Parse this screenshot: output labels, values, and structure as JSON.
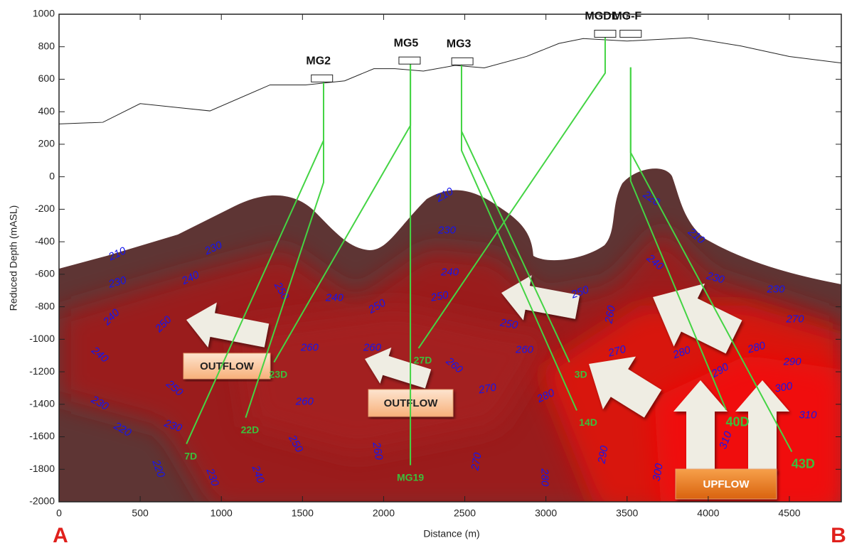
{
  "chart_data": {
    "type": "cross-section",
    "x_label": "Distance (m)",
    "y_label": "Reduced Depth (mASL)",
    "xlim": [
      0,
      4820
    ],
    "ylim": [
      -2000,
      1000
    ],
    "xticks": [
      0,
      500,
      1000,
      1500,
      2000,
      2500,
      3000,
      3500,
      4000,
      4500
    ],
    "yticks": [
      1000,
      800,
      600,
      400,
      200,
      0,
      -200,
      -400,
      -600,
      -800,
      -1000,
      -1200,
      -1400,
      -1600,
      -1800,
      -2000
    ],
    "section_ends": [
      "A",
      "B"
    ],
    "topography": {
      "x": [
        0,
        270,
        500,
        930,
        1300,
        1520,
        1760,
        1940,
        2070,
        2245,
        2440,
        2620,
        2880,
        3080,
        3230,
        3500,
        3890,
        4200,
        4500,
        4820
      ],
      "y": [
        325,
        335,
        450,
        405,
        565,
        565,
        590,
        665,
        665,
        650,
        685,
        670,
        740,
        820,
        850,
        835,
        855,
        805,
        740,
        700
      ]
    },
    "wells": [
      {
        "name": "MG2",
        "collar": [
          1620,
          605
        ],
        "traces": [
          {
            "label": "7D",
            "x": [
              1630,
              1630,
              785
            ],
            "y": [
              595,
              223,
              -1644
            ]
          },
          {
            "label": "22D",
            "x": [
              1630,
              1630,
              1150
            ],
            "y": [
              595,
              -35,
              -1482
            ]
          }
        ]
      },
      {
        "name": "MG5",
        "collar": [
          2160,
          715
        ],
        "traces": [
          {
            "label": "MG19",
            "x": [
              2165,
              2165
            ],
            "y": [
              704,
              -1775
            ]
          },
          {
            "label": "23D",
            "x": [
              2165,
              2165,
              1325
            ],
            "y": [
              704,
              315,
              -1141
            ]
          }
        ]
      },
      {
        "name": "MG3",
        "collar": [
          2485,
          710
        ],
        "traces": [
          {
            "label": "3D",
            "x": [
              2480,
              2480,
              3145
            ],
            "y": [
              700,
              280,
              -1141
            ]
          },
          {
            "label": "14D",
            "x": [
              2480,
              2480,
              3190
            ],
            "y": [
              700,
              162,
              -1438
            ]
          }
        ]
      },
      {
        "name": "MGDL",
        "collar": [
          3365,
          880
        ],
        "traces": [
          {
            "label": "27D",
            "x": [
              3365,
              3365,
              2215
            ],
            "y": [
              860,
              638,
              -1055
            ]
          }
        ]
      },
      {
        "name": "MG-F",
        "collar": [
          3522,
          880
        ],
        "traces": [
          {
            "label": "40D",
            "x": [
              3522,
              3522,
              4110
            ],
            "y": [
              673,
              -26,
              -1434
            ]
          },
          {
            "label": "43D",
            "x": [
              3522,
              3522,
              4515
            ],
            "y": [
              673,
              149,
              -1692
            ]
          }
        ]
      }
    ],
    "isotherm_labels": [
      {
        "value": 210,
        "x": 360,
        "y": -477
      },
      {
        "value": 230,
        "x": 952,
        "y": -442
      },
      {
        "value": 230,
        "x": 360,
        "y": -652
      },
      {
        "value": 240,
        "x": 811,
        "y": -625
      },
      {
        "value": 240,
        "x": 325,
        "y": -866
      },
      {
        "value": 250,
        "x": 645,
        "y": -909
      },
      {
        "value": 250,
        "x": 1368,
        "y": -704
      },
      {
        "value": 240,
        "x": 1697,
        "y": -748
      },
      {
        "value": 250,
        "x": 1961,
        "y": -800
      },
      {
        "value": 210,
        "x": 2377,
        "y": -114
      },
      {
        "value": 230,
        "x": 2390,
        "y": -332
      },
      {
        "value": 240,
        "x": 2408,
        "y": -590
      },
      {
        "value": 250,
        "x": 2346,
        "y": -739
      },
      {
        "value": 240,
        "x": 250,
        "y": -1097
      },
      {
        "value": 260,
        "x": 1544,
        "y": -1054
      },
      {
        "value": 260,
        "x": 1930,
        "y": -1054
      },
      {
        "value": 260,
        "x": 2434,
        "y": -1163
      },
      {
        "value": 250,
        "x": 710,
        "y": -1303
      },
      {
        "value": 230,
        "x": 250,
        "y": -1395
      },
      {
        "value": 260,
        "x": 1513,
        "y": -1386
      },
      {
        "value": 270,
        "x": 2640,
        "y": -1307
      },
      {
        "value": 220,
        "x": 390,
        "y": -1557
      },
      {
        "value": 230,
        "x": 702,
        "y": -1535
      },
      {
        "value": 250,
        "x": 1456,
        "y": -1644
      },
      {
        "value": 260,
        "x": 1960,
        "y": -1688
      },
      {
        "value": 220,
        "x": 610,
        "y": -1797
      },
      {
        "value": 230,
        "x": 943,
        "y": -1850
      },
      {
        "value": 240,
        "x": 1224,
        "y": -1832
      },
      {
        "value": 270,
        "x": 2575,
        "y": -1753
      },
      {
        "value": 280,
        "x": 2991,
        "y": -1850
      },
      {
        "value": 220,
        "x": 3649,
        "y": -136
      },
      {
        "value": 210,
        "x": 3925,
        "y": -367
      },
      {
        "value": 240,
        "x": 3671,
        "y": -529
      },
      {
        "value": 230,
        "x": 4044,
        "y": -625
      },
      {
        "value": 230,
        "x": 4417,
        "y": -695
      },
      {
        "value": 250,
        "x": 3211,
        "y": -713
      },
      {
        "value": 260,
        "x": 3399,
        "y": -848
      },
      {
        "value": 250,
        "x": 2772,
        "y": -909
      },
      {
        "value": 260,
        "x": 2868,
        "y": -1067
      },
      {
        "value": 270,
        "x": 3439,
        "y": -1076
      },
      {
        "value": 280,
        "x": 3838,
        "y": -1084
      },
      {
        "value": 270,
        "x": 4535,
        "y": -879
      },
      {
        "value": 280,
        "x": 4298,
        "y": -1054
      },
      {
        "value": 290,
        "x": 4075,
        "y": -1194
      },
      {
        "value": 290,
        "x": 4518,
        "y": -1141
      },
      {
        "value": 300,
        "x": 4465,
        "y": -1299
      },
      {
        "value": 280,
        "x": 3000,
        "y": -1351
      },
      {
        "value": 310,
        "x": 4614,
        "y": -1469
      },
      {
        "value": 310,
        "x": 4110,
        "y": -1622
      },
      {
        "value": 290,
        "x": 3355,
        "y": -1710
      },
      {
        "value": 300,
        "x": 3693,
        "y": -1819
      }
    ],
    "flow_labels": [
      "OUTFLOW",
      "OUTFLOW",
      "UPFLOW"
    ]
  }
}
